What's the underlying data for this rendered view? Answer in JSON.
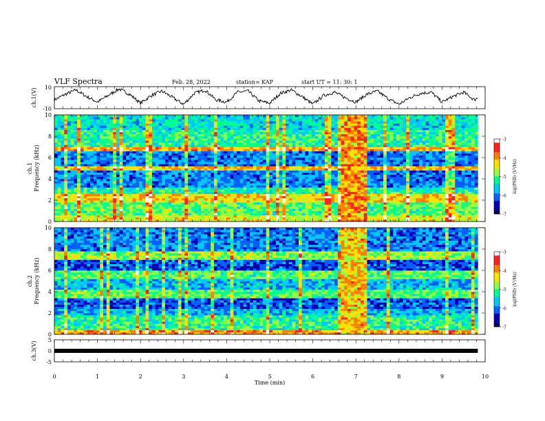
{
  "header": {
    "title": "VLF Spectra",
    "date": "Feb. 28, 2022",
    "station": "station= KAP",
    "start_time": "start  UT =   11: 30: 1"
  },
  "colorbar": {
    "label": "log(PSD) (V²/Hz)",
    "ticks": [
      "-3",
      "-4",
      "-5",
      "-6",
      "-7"
    ],
    "range": [
      -7,
      -3
    ],
    "palette": [
      "#ffffff",
      "#ff2020",
      "#ff8000",
      "#ffe000",
      "#90ff40",
      "#00ff90",
      "#00c8ff",
      "#0060ff",
      "#0000b0",
      "#000060"
    ]
  },
  "chart_data": [
    {
      "type": "line",
      "panel": "ch1-waveform",
      "ylabel": "ch.1(V)",
      "ylim": [
        -10,
        10
      ],
      "yticks": [
        "10",
        "-10"
      ],
      "x": [
        0,
        0.25,
        0.5,
        0.75,
        1.0,
        1.25,
        1.5,
        1.75,
        2.0,
        2.25,
        2.5,
        2.75,
        3.0,
        3.25,
        3.5,
        3.75,
        4.0,
        4.25,
        4.5,
        4.75,
        5.0,
        5.25,
        5.5,
        5.75,
        6.0,
        6.25,
        6.5,
        6.75,
        7.0,
        7.25,
        7.5,
        7.75,
        8.0,
        8.25,
        8.5,
        8.75,
        9.0,
        9.25,
        9.5,
        9.75,
        9.83
      ],
      "values": [
        -2,
        3,
        7,
        1,
        -4,
        2,
        8,
        3,
        -5,
        2,
        6,
        0,
        -6,
        4,
        7,
        -2,
        -4,
        5,
        6,
        -3,
        -5,
        4,
        7,
        1,
        -6,
        2,
        5,
        0,
        -4,
        3,
        6,
        -1,
        -6,
        0,
        4,
        5,
        -4,
        1,
        5,
        -2,
        0
      ]
    },
    {
      "type": "heatmap",
      "panel": "ch1-spectrogram",
      "ylabel": "ch.1\nFrequency (kHz)",
      "ylim": [
        0,
        10
      ],
      "yticks": [
        "0",
        "2",
        "4",
        "6",
        "8",
        "10"
      ],
      "x_range_min": [
        0,
        9.83
      ],
      "freq_bands_kHz": [
        {
          "range": [
            0,
            0.6
          ],
          "level": -4.5
        },
        {
          "range": [
            0.6,
            1.8
          ],
          "level": -5.0
        },
        {
          "range": [
            1.8,
            2.6
          ],
          "level": -4.3
        },
        {
          "range": [
            2.6,
            3.2
          ],
          "level": -5.3
        },
        {
          "range": [
            3.2,
            4.8
          ],
          "level": -6.0
        },
        {
          "range": [
            4.8,
            5.2
          ],
          "level": -4.2
        },
        {
          "range": [
            5.2,
            6.5
          ],
          "level": -6.0
        },
        {
          "range": [
            6.5,
            7.0
          ],
          "level": -4.0
        },
        {
          "range": [
            7.0,
            8.6
          ],
          "level": -5.2
        },
        {
          "range": [
            8.6,
            10
          ],
          "level": -5.5
        }
      ],
      "burst": {
        "time_min": [
          6.65,
          7.25
        ],
        "level": -4.0
      }
    },
    {
      "type": "heatmap",
      "panel": "ch2-spectrogram",
      "ylabel": "ch.2\nFrequency (kHz)",
      "ylim": [
        0,
        10
      ],
      "yticks": [
        "0",
        "2",
        "4",
        "6",
        "8",
        "10"
      ],
      "x_range_min": [
        0,
        9.83
      ],
      "freq_bands_kHz": [
        {
          "range": [
            0,
            0.4
          ],
          "level": -4.0
        },
        {
          "range": [
            0.4,
            1.8
          ],
          "level": -5.2
        },
        {
          "range": [
            1.8,
            2.4
          ],
          "level": -5.8
        },
        {
          "range": [
            2.4,
            3.3
          ],
          "level": -6.2
        },
        {
          "range": [
            3.3,
            4.2
          ],
          "level": -5.0
        },
        {
          "range": [
            4.2,
            5.2
          ],
          "level": -5.7
        },
        {
          "range": [
            5.2,
            6.0
          ],
          "level": -5.0
        },
        {
          "range": [
            6.0,
            7.0
          ],
          "level": -6.2
        },
        {
          "range": [
            7.0,
            7.8
          ],
          "level": -4.8
        },
        {
          "range": [
            7.8,
            10
          ],
          "level": -6.0
        }
      ],
      "burst": {
        "time_min": [
          6.65,
          7.25
        ],
        "level": -4.2
      }
    },
    {
      "type": "line",
      "panel": "ch3-waveform",
      "ylabel": "ch.3(V)",
      "ylim": [
        -5,
        5
      ],
      "yticks": [
        "5",
        "0",
        "-5"
      ],
      "x": [
        0,
        9.83
      ],
      "values": [
        0,
        0
      ],
      "xlabel": "Time  (min)",
      "xlim": [
        0,
        10
      ],
      "xticks": [
        "0",
        "1",
        "2",
        "3",
        "4",
        "5",
        "6",
        "7",
        "8",
        "9",
        "10"
      ]
    }
  ]
}
